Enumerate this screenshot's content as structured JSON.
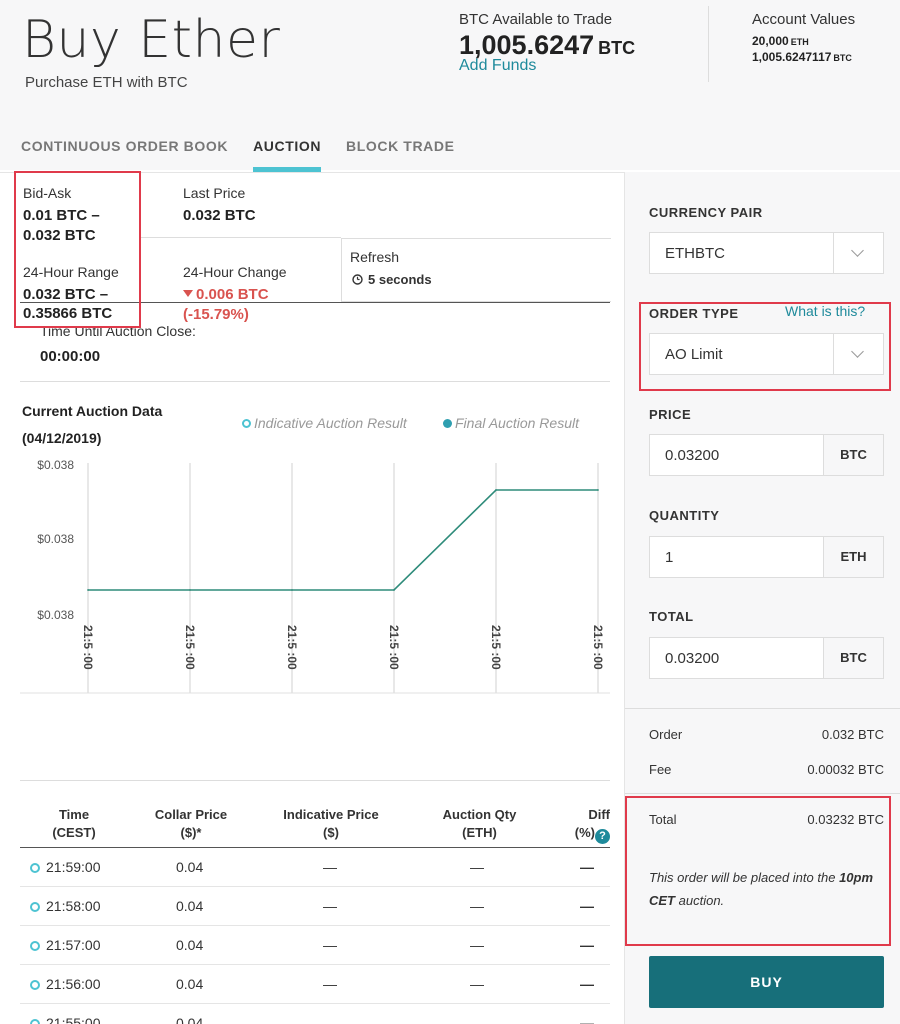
{
  "header": {
    "title": "Buy Ether",
    "subtitle": "Purchase ETH with BTC",
    "available_label": "BTC Available to Trade",
    "available_value": "1,005.6247",
    "available_unit": "BTC",
    "add_funds": "Add Funds",
    "account_label": "Account Values",
    "account_eth_value": "20,000",
    "account_eth_unit": "ETH",
    "account_btc_value": "1,005.6247117",
    "account_btc_unit": "BTC"
  },
  "tabs": [
    {
      "label": "CONTINUOUS ORDER BOOK",
      "active": false
    },
    {
      "label": "AUCTION",
      "active": true
    },
    {
      "label": "BLOCK TRADE",
      "active": false
    }
  ],
  "stats": {
    "bid_ask_label": "Bid-Ask",
    "bid_ask_line1": "0.01 BTC –",
    "bid_ask_line2": "0.032 BTC",
    "last_price_label": "Last Price",
    "last_price_value": "0.032 BTC",
    "range_label": "24-Hour Range",
    "range_line1": "0.032 BTC –",
    "range_line2": "0.35866 BTC",
    "change_label": "24-Hour Change",
    "change_line1": "0.006 BTC",
    "change_line2": "(-15.79%)",
    "refresh_label": "Refresh",
    "refresh_value": "5 seconds",
    "time_until_label": "Time Until Auction Close:",
    "time_until_value": "00:00:00"
  },
  "chart_section": {
    "title_line1": "Current Auction Data",
    "title_line2": "(04/12/2019)",
    "legend_indicative": "Indicative Auction Result",
    "legend_final": "Final Auction Result"
  },
  "chart_data": {
    "type": "line",
    "title": "",
    "x": [
      "21:5 :00",
      "21:5 :00",
      "21:5 :00",
      "21:5 :00",
      "21:5 :00",
      "21:5 :00"
    ],
    "y_tick_labels": [
      "$0.038",
      "$0.038",
      "$0.038"
    ],
    "series": [
      {
        "values": [
          0.0378,
          0.0378,
          0.0378,
          0.0378,
          0.0382,
          0.0382
        ],
        "color": "#2e8b7a"
      }
    ],
    "ylim": [
      0.0377,
      0.0383
    ],
    "grid": true
  },
  "table": {
    "headers": [
      {
        "line1": "Time",
        "line2": "(CEST)"
      },
      {
        "line1": "Collar Price",
        "line2": "($)*"
      },
      {
        "line1": "Indicative Price",
        "line2": "($)"
      },
      {
        "line1": "Auction Qty",
        "line2": "(ETH)"
      },
      {
        "line1": "Diff",
        "line2": "(%)"
      }
    ],
    "rows": [
      {
        "time": "21:59:00",
        "collar": "0.04",
        "indicative": "—",
        "qty": "—",
        "diff": "—"
      },
      {
        "time": "21:58:00",
        "collar": "0.04",
        "indicative": "—",
        "qty": "—",
        "diff": "—"
      },
      {
        "time": "21:57:00",
        "collar": "0.04",
        "indicative": "—",
        "qty": "—",
        "diff": "—"
      },
      {
        "time": "21:56:00",
        "collar": "0.04",
        "indicative": "—",
        "qty": "—",
        "diff": "—"
      },
      {
        "time": "21:55:00",
        "collar": "0.04",
        "indicative": "—",
        "qty": "—",
        "diff": "—"
      }
    ]
  },
  "order_form": {
    "currency_pair_label": "CURRENCY PAIR",
    "currency_pair_value": "ETHBTC",
    "order_type_label": "ORDER TYPE",
    "order_type_help": "What is this?",
    "order_type_value": "AO Limit",
    "price_label": "PRICE",
    "price_value": "0.03200",
    "price_unit": "BTC",
    "quantity_label": "QUANTITY",
    "quantity_value": "1",
    "quantity_unit": "ETH",
    "total_label": "TOTAL",
    "total_value": "0.03200",
    "total_unit": "BTC",
    "order_label": "Order",
    "order_value": "0.032 BTC",
    "fee_label": "Fee",
    "fee_value": "0.00032 BTC",
    "sum_total_label": "Total",
    "sum_total_value": "0.03232 BTC",
    "note_part1": "This order will be placed into the",
    "note_bold": "10pm CET",
    "note_part2": "auction.",
    "buy_label": "BUY"
  },
  "colors": {
    "accent": "#4dc3d2",
    "link": "#1e8a9b",
    "buy_button": "#176f7a",
    "negative": "#d9534f",
    "highlight_box": "#e03a4b",
    "chart_line": "#2e8b7a"
  }
}
